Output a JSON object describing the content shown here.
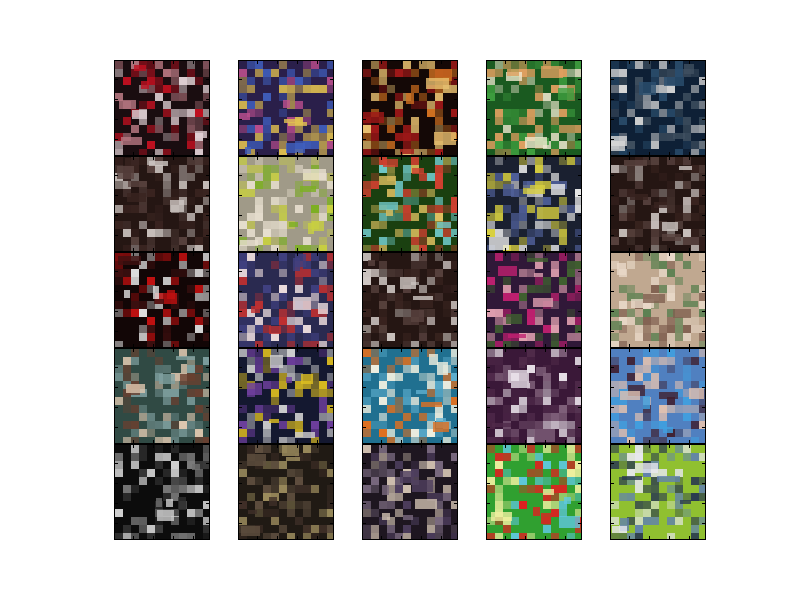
{
  "figure": {
    "background": "#ffffff",
    "rows": 5,
    "columns": 5,
    "axes_frame_color": "#000000"
  },
  "thumbnails": [
    {
      "row": 1,
      "col": 1,
      "subject": "red-theme-cover",
      "colors": [
        "#1a0d10",
        "#b87882",
        "#c01020",
        "#e0d0d4"
      ]
    },
    {
      "row": 1,
      "col": 2,
      "subject": "colorful-crowd-collage",
      "colors": [
        "#2a1f4a",
        "#c05090",
        "#4060c0",
        "#e0c050"
      ]
    },
    {
      "row": 1,
      "col": 3,
      "subject": "red-gold-dark-cover",
      "colors": [
        "#140806",
        "#a01818",
        "#d07020",
        "#e8c070"
      ]
    },
    {
      "row": 1,
      "col": 4,
      "subject": "green-character-cover",
      "colors": [
        "#1a5a20",
        "#40a040",
        "#e0a060",
        "#f0e8d0"
      ]
    },
    {
      "row": 1,
      "col": 5,
      "subject": "navy-skull-cover",
      "colors": [
        "#0e2036",
        "#2c5070",
        "#d8d8d8",
        "#405060"
      ]
    },
    {
      "row": 2,
      "col": 1,
      "subject": "dark-brown-text-cover",
      "colors": [
        "#251613",
        "#3a2420",
        "#d0c8c4",
        "#5a4440"
      ]
    },
    {
      "row": 2,
      "col": 2,
      "subject": "portrait-pale-lime-band",
      "colors": [
        "#a09a88",
        "#e8e0d0",
        "#7cb020",
        "#c8d040"
      ]
    },
    {
      "row": 2,
      "col": 3,
      "subject": "cyan-character-poster",
      "colors": [
        "#1a4010",
        "#70c8c8",
        "#e0c060",
        "#d04030"
      ]
    },
    {
      "row": 2,
      "col": 4,
      "subject": "yellow-blue-action-scene",
      "colors": [
        "#1a2030",
        "#d8d040",
        "#50609a",
        "#e8e8e8"
      ]
    },
    {
      "row": 2,
      "col": 5,
      "subject": "dark-brown-text-cover",
      "colors": [
        "#251613",
        "#3a2420",
        "#d0c8c4",
        "#5a4440"
      ]
    },
    {
      "row": 3,
      "col": 1,
      "subject": "red-black-graphic-cover",
      "colors": [
        "#120606",
        "#c01010",
        "#e0e0e0",
        "#401010"
      ]
    },
    {
      "row": 3,
      "col": 2,
      "subject": "anime-character-portrait",
      "colors": [
        "#2a2a50",
        "#f0e0e0",
        "#c03030",
        "#404080"
      ]
    },
    {
      "row": 3,
      "col": 3,
      "subject": "dark-brown-text-cover",
      "colors": [
        "#251613",
        "#3a2420",
        "#d0c8c4",
        "#5a4440"
      ]
    },
    {
      "row": 3,
      "col": 4,
      "subject": "purple-pink-portrait",
      "colors": [
        "#301838",
        "#c02070",
        "#e0a0b0",
        "#406030"
      ]
    },
    {
      "row": 3,
      "col": 5,
      "subject": "beige-figure-photo",
      "colors": [
        "#c0a890",
        "#e8d8c8",
        "#806050",
        "#5a8050"
      ]
    },
    {
      "row": 4,
      "col": 1,
      "subject": "teal-brown-character-art",
      "colors": [
        "#304a44",
        "#80a0a0",
        "#6a4030",
        "#e0c8b0"
      ]
    },
    {
      "row": 4,
      "col": 2,
      "subject": "navy-yellow-title-cover",
      "colors": [
        "#141830",
        "#e0c020",
        "#7040a0",
        "#d0d0d0"
      ]
    },
    {
      "row": 4,
      "col": 3,
      "subject": "blue-orange-aircraft-scene",
      "colors": [
        "#207090",
        "#60b0d0",
        "#e07020",
        "#f0f0e0"
      ]
    },
    {
      "row": 4,
      "col": 4,
      "subject": "purple-speckled-pattern",
      "colors": [
        "#3a1838",
        "#502a4a",
        "#e8e0e8",
        "#80607a"
      ]
    },
    {
      "row": 4,
      "col": 5,
      "subject": "blue-portrait-photo",
      "colors": [
        "#5080c0",
        "#40a0e0",
        "#e0c0b0",
        "#402030"
      ]
    },
    {
      "row": 5,
      "col": 1,
      "subject": "monochrome-swirl-cover",
      "colors": [
        "#0c0c0c",
        "#303030",
        "#d0d0d0",
        "#707070"
      ]
    },
    {
      "row": 5,
      "col": 2,
      "subject": "dark-busy-collage",
      "colors": [
        "#201a14",
        "#605040",
        "#a09060",
        "#403028"
      ]
    },
    {
      "row": 5,
      "col": 3,
      "subject": "dark-character-group",
      "colors": [
        "#1e1620",
        "#504060",
        "#d0c0b0",
        "#7a6a80"
      ]
    },
    {
      "row": 5,
      "col": 4,
      "subject": "green-field-red-flag-cover",
      "colors": [
        "#30a030",
        "#60c8e0",
        "#e02020",
        "#f0f0a0"
      ]
    },
    {
      "row": 5,
      "col": 5,
      "subject": "lime-banner-cover",
      "colors": [
        "#90c030",
        "#2a3a50",
        "#e8e8f0",
        "#6080b0"
      ]
    }
  ]
}
